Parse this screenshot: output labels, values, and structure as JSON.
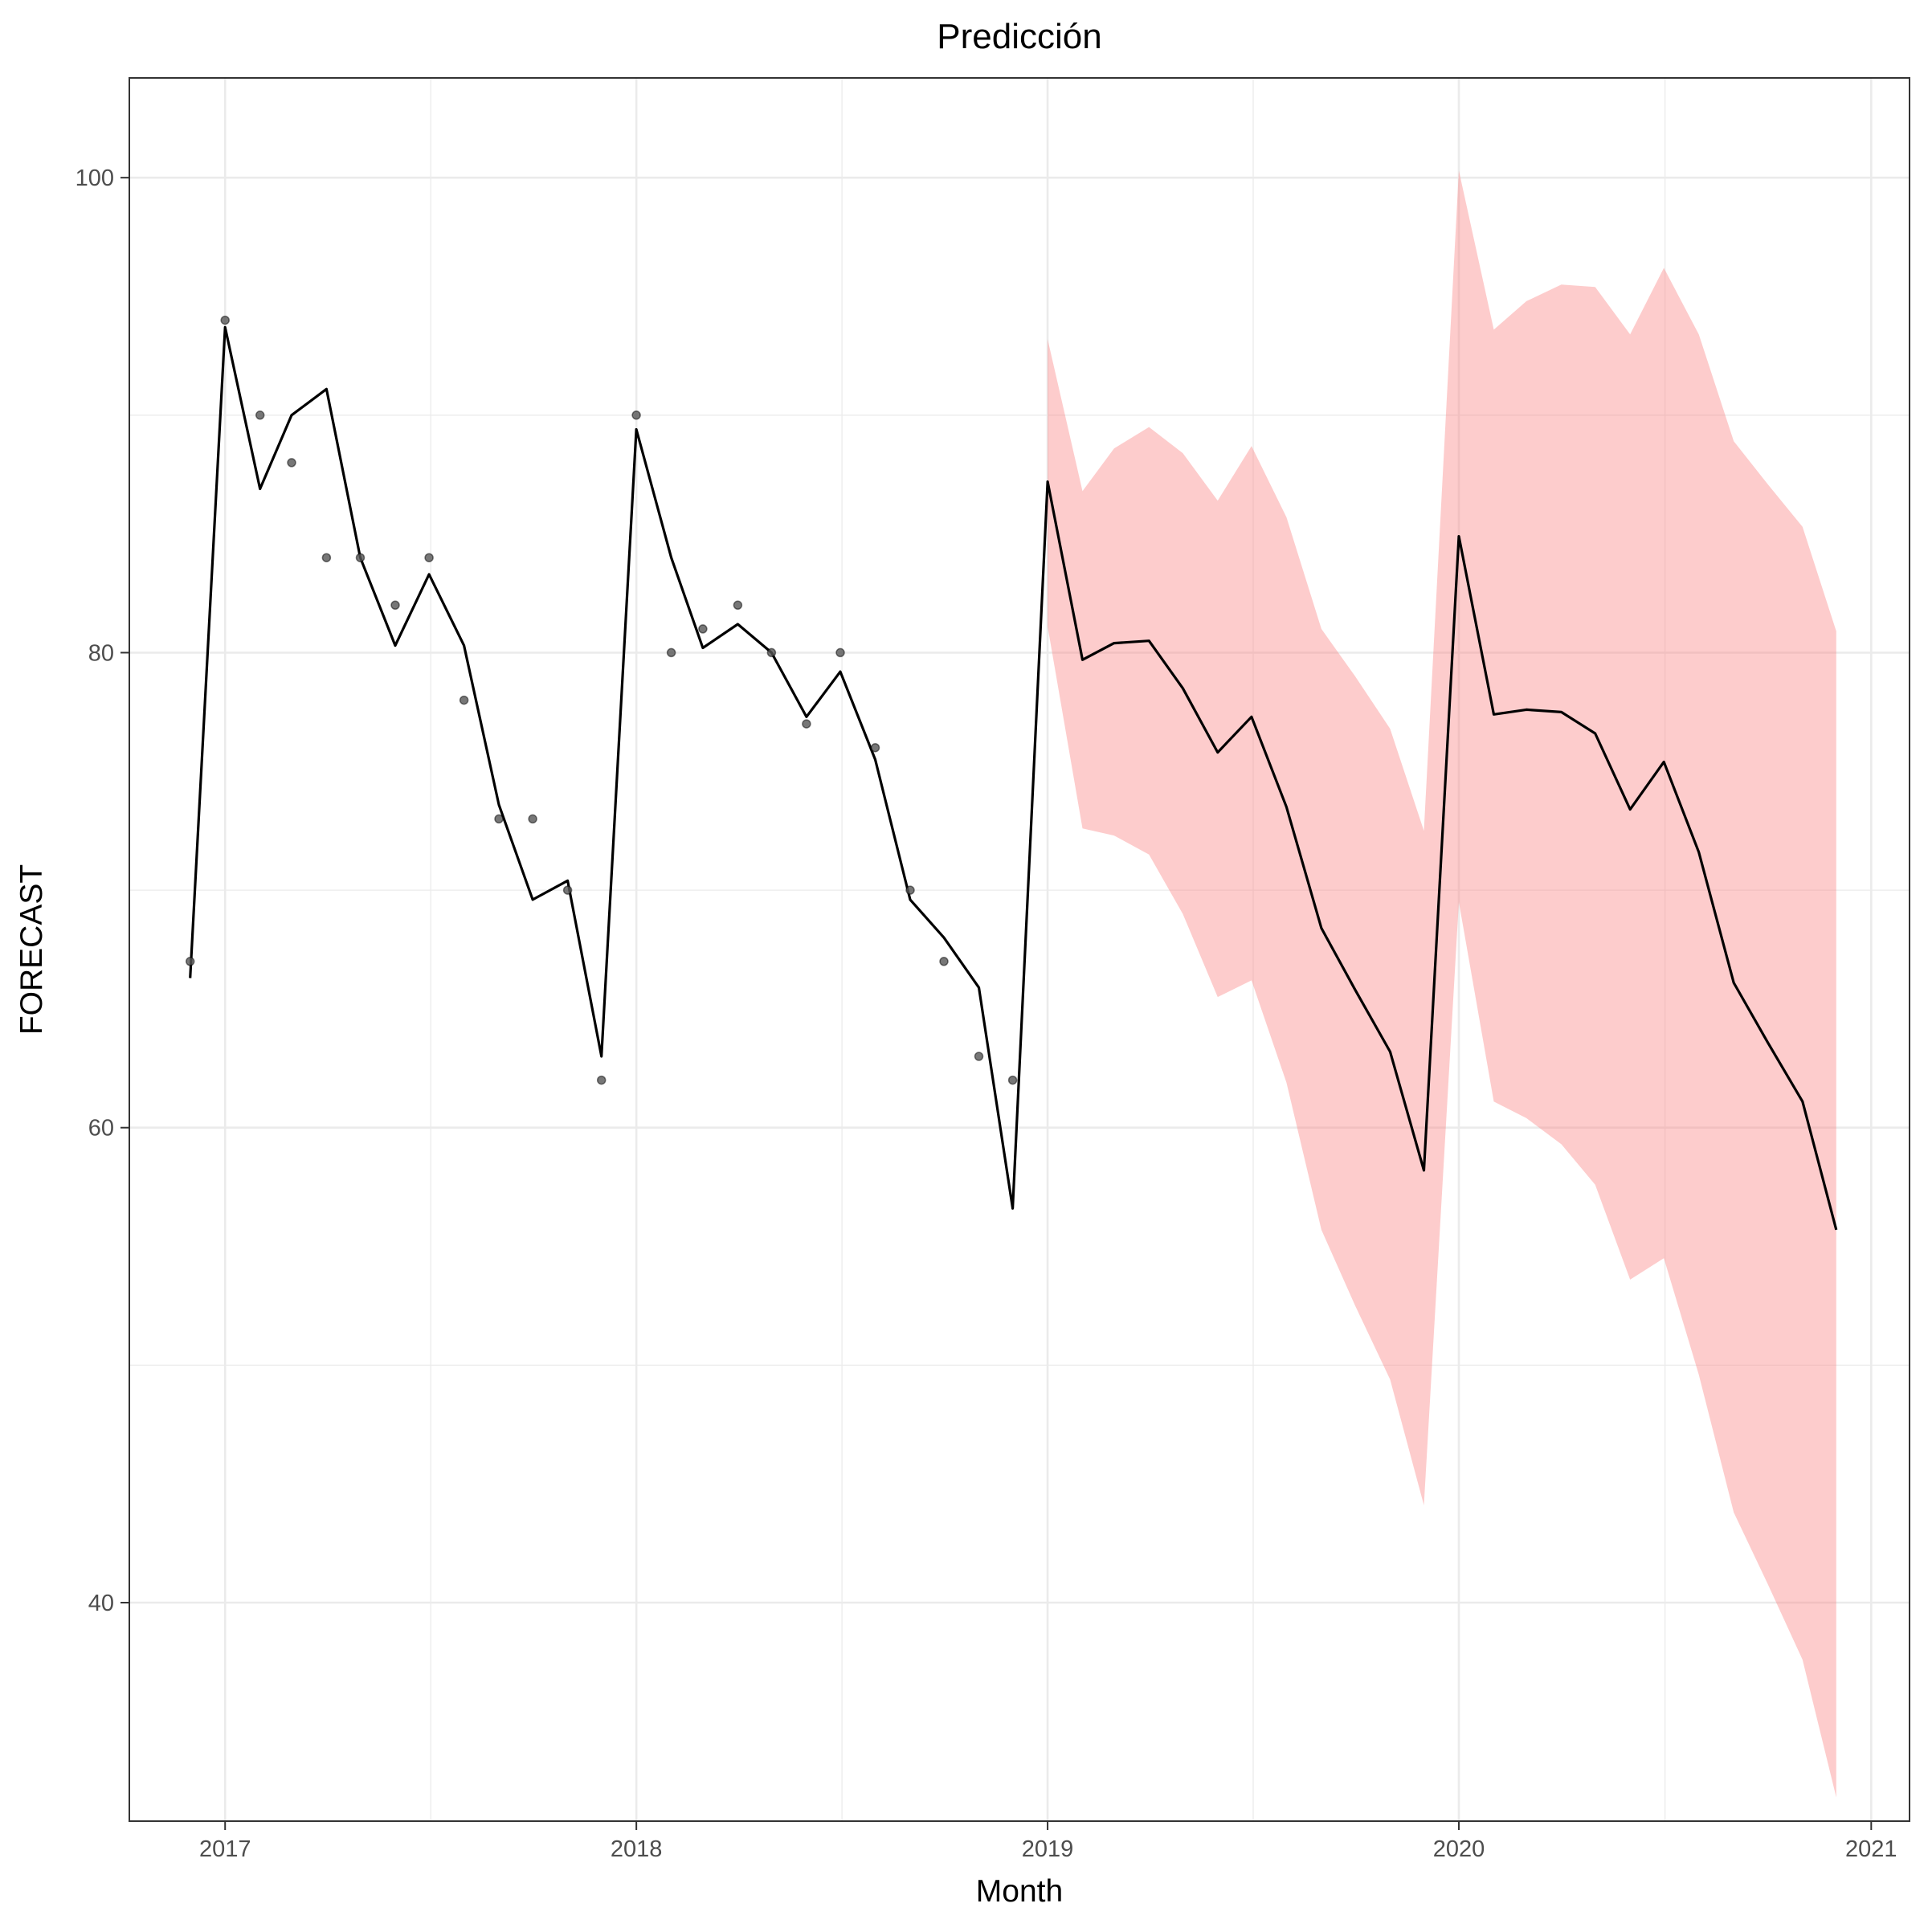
{
  "chart_data": {
    "type": "line",
    "title": "Predicción",
    "xlabel": "Month",
    "ylabel": "FORECAST",
    "xlim": [
      "2016-10-08",
      "2021-02-04"
    ],
    "ylim": [
      30.8,
      104.2
    ],
    "x_ticks": [
      "2017-01-01",
      "2018-01-01",
      "2019-01-01",
      "2020-01-01",
      "2021-01-01"
    ],
    "x_tick_labels": [
      "2017",
      "2018",
      "2019",
      "2020",
      "2021"
    ],
    "y_ticks": [
      40,
      60,
      80,
      100
    ],
    "y_tick_labels": [
      "40",
      "60",
      "80",
      "100"
    ],
    "grid": true,
    "colors": {
      "line": "#000000",
      "points": "#555555",
      "interval": "#fa8080",
      "grid": "#ebebeb",
      "panel_border": "#333333"
    },
    "series": [
      {
        "kind": "observed_points",
        "x": [
          "2016-12-01",
          "2017-01-01",
          "2017-02-01",
          "2017-03-01",
          "2017-04-01",
          "2017-05-01",
          "2017-06-01",
          "2017-07-01",
          "2017-08-01",
          "2017-09-01",
          "2017-10-01",
          "2017-11-01",
          "2017-12-01",
          "2018-01-01",
          "2018-02-01",
          "2018-03-01",
          "2018-04-01",
          "2018-05-01",
          "2018-06-01",
          "2018-07-01",
          "2018-08-01",
          "2018-09-01",
          "2018-10-01",
          "2018-11-01",
          "2018-12-01"
        ],
        "values": [
          67,
          94,
          90,
          88,
          84,
          84,
          82,
          84,
          78,
          73,
          73,
          70,
          62,
          90,
          80,
          81,
          82,
          80,
          77,
          80,
          76,
          70,
          67,
          63,
          62
        ]
      },
      {
        "kind": "fitted_and_forecast_line",
        "x": [
          "2016-12-01",
          "2017-01-01",
          "2017-02-01",
          "2017-03-01",
          "2017-04-01",
          "2017-05-01",
          "2017-06-01",
          "2017-07-01",
          "2017-08-01",
          "2017-09-01",
          "2017-10-01",
          "2017-11-01",
          "2017-12-01",
          "2018-01-01",
          "2018-02-01",
          "2018-03-01",
          "2018-04-01",
          "2018-05-01",
          "2018-06-01",
          "2018-07-01",
          "2018-08-01",
          "2018-09-01",
          "2018-10-01",
          "2018-11-01",
          "2018-12-01",
          "2019-01-01",
          "2019-02-01",
          "2019-03-01",
          "2019-04-01",
          "2019-05-01",
          "2019-06-01",
          "2019-07-01",
          "2019-08-01",
          "2019-09-01",
          "2019-10-01",
          "2019-11-01",
          "2019-12-01",
          "2020-01-01",
          "2020-02-01",
          "2020-03-01",
          "2020-04-01",
          "2020-05-01",
          "2020-06-01",
          "2020-07-01",
          "2020-08-01",
          "2020-09-01",
          "2020-10-01",
          "2020-11-01",
          "2020-12-01"
        ],
        "values": [
          66.3,
          93.7,
          86.9,
          90.0,
          91.1,
          84.0,
          80.3,
          83.3,
          80.3,
          73.6,
          69.6,
          70.4,
          63.0,
          89.4,
          84.0,
          80.2,
          81.2,
          80.0,
          77.3,
          79.2,
          75.5,
          69.6,
          68.0,
          65.9,
          56.6,
          87.2,
          79.7,
          80.4,
          80.5,
          78.5,
          75.8,
          77.3,
          73.5,
          68.4,
          65.8,
          63.2,
          58.2,
          84.9,
          77.4,
          77.6,
          77.5,
          76.6,
          73.4,
          75.4,
          71.6,
          66.1,
          63.6,
          61.1,
          55.7
        ]
      },
      {
        "kind": "prediction_interval",
        "x": [
          "2019-01-01",
          "2019-02-01",
          "2019-03-01",
          "2019-04-01",
          "2019-05-01",
          "2019-06-01",
          "2019-07-01",
          "2019-08-01",
          "2019-09-01",
          "2019-10-01",
          "2019-11-01",
          "2019-12-01",
          "2020-01-01",
          "2020-02-01",
          "2020-03-01",
          "2020-04-01",
          "2020-05-01",
          "2020-06-01",
          "2020-07-01",
          "2020-08-01",
          "2020-09-01",
          "2020-10-01",
          "2020-11-01",
          "2020-12-01"
        ],
        "lower": [
          81.1,
          72.6,
          72.3,
          71.5,
          69.0,
          65.5,
          66.2,
          61.9,
          55.7,
          52.5,
          49.4,
          44.1,
          69.5,
          61.1,
          60.4,
          59.3,
          57.6,
          53.6,
          54.5,
          49.6,
          43.8,
          40.8,
          37.6,
          31.8
        ],
        "upper": [
          93.2,
          86.8,
          88.6,
          89.5,
          88.4,
          86.4,
          88.7,
          85.7,
          81.0,
          79.0,
          76.8,
          72.5,
          100.3,
          93.6,
          94.8,
          95.5,
          95.4,
          93.4,
          96.2,
          93.4,
          88.9,
          87.1,
          85.3,
          80.9
        ]
      }
    ]
  }
}
